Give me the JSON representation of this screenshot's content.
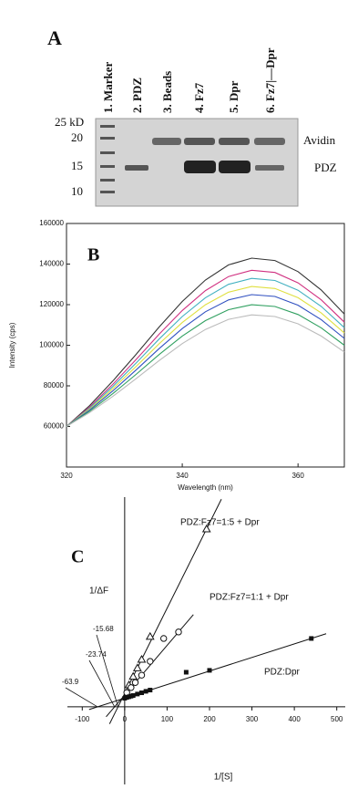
{
  "gel": {
    "panel_label": "A",
    "lanes": [
      "1. Marker",
      "2. PDZ",
      "3. Beads",
      "4. Fz7",
      "5. Dpr",
      "6. Fz7|—Dpr"
    ],
    "size_markers": [
      "25 kD",
      "20",
      "15",
      "10"
    ],
    "band_labels": [
      "Avidin",
      "PDZ"
    ]
  },
  "chart_data": [
    {
      "type": "line",
      "panel_label": "B",
      "x_label": "Wavelength (nm)",
      "y_label": "Intensity (cps)",
      "x": [
        320,
        324,
        328,
        332,
        336,
        340,
        344,
        348,
        352,
        356,
        360,
        364,
        368
      ],
      "series": [
        {
          "color": "#333333",
          "values": [
            60000,
            70292,
            82327,
            95441,
            108970,
            121586,
            132127,
            139597,
            142917,
            141755,
            136277,
            127230,
            115361
          ]
        },
        {
          "color": "#d03080",
          "values": [
            60000,
            69548,
            80713,
            92879,
            105430,
            117134,
            126913,
            133843,
            136923,
            135845,
            130763,
            122370,
            111359
          ]
        },
        {
          "color": "#40b0c0",
          "values": [
            60000,
            69052,
            79637,
            91171,
            103070,
            114166,
            123437,
            130007,
            132927,
            131905,
            127087,
            119130,
            108691
          ]
        },
        {
          "color": "#e0e040",
          "values": [
            60000,
            68556,
            78561,
            89463,
            100710,
            111198,
            119961,
            126171,
            128931,
            127965,
            123411,
            115890,
            106023
          ]
        },
        {
          "color": "#3050c0",
          "values": [
            60000,
            68060,
            77485,
            87755,
            98350,
            108230,
            116485,
            122335,
            124935,
            124025,
            119735,
            112650,
            103355
          ]
        },
        {
          "color": "#30a060",
          "values": [
            60000,
            67440,
            76140,
            85620,
            95400,
            104520,
            112140,
            117540,
            119940,
            119100,
            115140,
            108600,
            100020
          ]
        },
        {
          "color": "#bbbbbb",
          "values": [
            60000,
            66820,
            74795,
            83485,
            92450,
            100810,
            107795,
            112745,
            114945,
            114175,
            110545,
            104550,
            96685
          ]
        }
      ],
      "xlim": [
        320,
        368
      ],
      "xticks": [
        320,
        340,
        360
      ],
      "ylim": [
        40000,
        160000
      ],
      "yticks": [
        60000,
        80000,
        100000,
        120000,
        140000,
        160000
      ]
    },
    {
      "type": "scatter",
      "panel_label": "C",
      "x_label": "1/[S]",
      "y_label": "1/ΔF",
      "series": [
        {
          "name": "PDZ:Fz7=1:5 + Dpr",
          "marker": "triangle",
          "color": "#111111",
          "x_intercept": -15.68,
          "x": [
            10,
            20,
            30,
            40,
            60,
            193
          ],
          "y": [
            10.4,
            14.5,
            18.5,
            22.6,
            33.5,
            84.8
          ]
        },
        {
          "name": "PDZ:Fz7=1:1 + Dpr",
          "marker": "circle",
          "color": "#111111",
          "x_intercept": -23.74,
          "x": [
            5,
            15,
            25,
            40,
            60,
            92,
            127
          ],
          "y": [
            6.8,
            9.2,
            11.6,
            15.1,
            21.7,
            32.6,
            35.7
          ]
        },
        {
          "name": "PDZ:Dpr",
          "marker": "square",
          "color": "#111111",
          "x_intercept": -63.9,
          "x": [
            0,
            5,
            10,
            15,
            20,
            30,
            40,
            50,
            60,
            145,
            200,
            440
          ],
          "y": [
            4.1,
            4.5,
            4.8,
            5.1,
            5.4,
            6.1,
            6.7,
            7.4,
            8.0,
            16.5,
            17.4,
            32.6
          ]
        }
      ],
      "xlim": [
        -135,
        520
      ],
      "xticks": [
        -100,
        0,
        100,
        200,
        300,
        400,
        500
      ],
      "ylim": [
        -37,
        100
      ]
    }
  ]
}
